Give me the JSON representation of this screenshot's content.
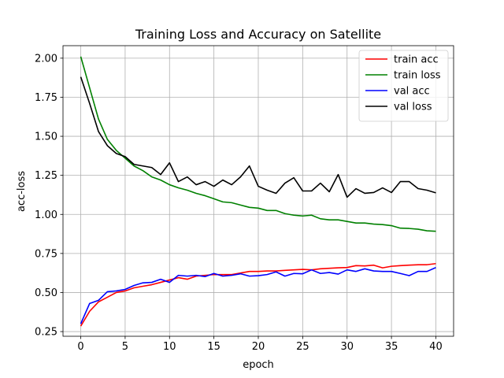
{
  "chart_data": {
    "type": "line",
    "title": "Training Loss and Accuracy on Satellite",
    "xlabel": "epoch",
    "ylabel": "acc-loss",
    "xlim": [
      -2,
      42
    ],
    "ylim": [
      0.22,
      2.08
    ],
    "xticks": [
      0,
      5,
      10,
      15,
      20,
      25,
      30,
      35,
      40
    ],
    "xtick_labels": [
      "0",
      "5",
      "10",
      "15",
      "20",
      "25",
      "30",
      "35",
      "40"
    ],
    "yticks": [
      0.25,
      0.5,
      0.75,
      1.0,
      1.25,
      1.5,
      1.75,
      2.0
    ],
    "ytick_labels": [
      "0.25",
      "0.50",
      "0.75",
      "1.00",
      "1.25",
      "1.50",
      "1.75",
      "2.00"
    ],
    "grid": true,
    "legend_position": "top-right",
    "x": [
      0,
      1,
      2,
      3,
      4,
      5,
      6,
      7,
      8,
      9,
      10,
      11,
      12,
      13,
      14,
      15,
      16,
      17,
      18,
      19,
      20,
      21,
      22,
      23,
      24,
      25,
      26,
      27,
      28,
      29,
      30,
      31,
      32,
      33,
      34,
      35,
      36,
      37,
      38,
      39,
      40
    ],
    "series": [
      {
        "name": "train acc",
        "color": "#ff0000",
        "values": [
          0.285,
          0.38,
          0.44,
          0.47,
          0.5,
          0.51,
          0.53,
          0.54,
          0.55,
          0.565,
          0.58,
          0.595,
          0.585,
          0.605,
          0.61,
          0.615,
          0.615,
          0.615,
          0.625,
          0.635,
          0.635,
          0.638,
          0.638,
          0.642,
          0.645,
          0.648,
          0.645,
          0.652,
          0.655,
          0.658,
          0.66,
          0.672,
          0.67,
          0.675,
          0.658,
          0.668,
          0.672,
          0.675,
          0.678,
          0.678,
          0.685
        ]
      },
      {
        "name": "train loss",
        "color": "#008000",
        "values": [
          2.01,
          1.81,
          1.61,
          1.48,
          1.41,
          1.36,
          1.31,
          1.28,
          1.24,
          1.22,
          1.19,
          1.17,
          1.155,
          1.135,
          1.12,
          1.1,
          1.08,
          1.075,
          1.06,
          1.045,
          1.04,
          1.025,
          1.025,
          1.005,
          0.995,
          0.99,
          0.995,
          0.972,
          0.965,
          0.965,
          0.955,
          0.945,
          0.945,
          0.938,
          0.935,
          0.928,
          0.912,
          0.91,
          0.905,
          0.895,
          0.892
        ]
      },
      {
        "name": "val acc",
        "color": "#0000ff",
        "values": [
          0.3,
          0.43,
          0.45,
          0.505,
          0.51,
          0.52,
          0.545,
          0.562,
          0.565,
          0.585,
          0.565,
          0.61,
          0.605,
          0.61,
          0.602,
          0.622,
          0.605,
          0.61,
          0.62,
          0.605,
          0.608,
          0.615,
          0.632,
          0.605,
          0.622,
          0.62,
          0.645,
          0.622,
          0.628,
          0.618,
          0.645,
          0.635,
          0.652,
          0.638,
          0.635,
          0.635,
          0.622,
          0.608,
          0.635,
          0.635,
          0.66
        ]
      },
      {
        "name": "val loss",
        "color": "#000000",
        "values": [
          1.88,
          1.71,
          1.53,
          1.44,
          1.39,
          1.37,
          1.32,
          1.31,
          1.3,
          1.255,
          1.33,
          1.21,
          1.24,
          1.19,
          1.21,
          1.18,
          1.22,
          1.19,
          1.24,
          1.31,
          1.18,
          1.155,
          1.135,
          1.2,
          1.235,
          1.15,
          1.15,
          1.2,
          1.145,
          1.255,
          1.11,
          1.165,
          1.135,
          1.14,
          1.17,
          1.14,
          1.21,
          1.21,
          1.165,
          1.155,
          1.138
        ]
      }
    ]
  }
}
